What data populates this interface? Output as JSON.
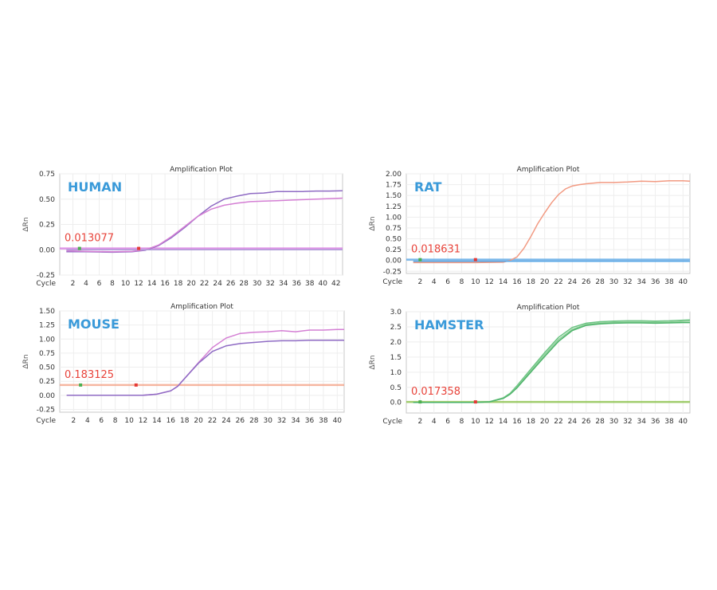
{
  "chart_data": [
    {
      "type": "line",
      "title": "Amplification Plot",
      "ylabel": "ΔRn",
      "xlabel": "Cycle",
      "label": "HUMAN",
      "threshold_label": "0.013077",
      "threshold": 0.013077,
      "xlim": [
        0,
        43
      ],
      "ylim": [
        -0.25,
        0.75
      ],
      "xticks": [
        2,
        4,
        6,
        8,
        10,
        12,
        14,
        16,
        18,
        20,
        22,
        24,
        26,
        28,
        30,
        32,
        34,
        36,
        38,
        40,
        42
      ],
      "yticks": [
        "0.75",
        "0.50",
        "0.25",
        "0.00",
        "-0.25"
      ],
      "grid": true,
      "colors": {
        "label": "#3a9ad9",
        "threshold_text": "#e8433a",
        "threshold_line": "#d77be0",
        "baseline_start": "#4caf50",
        "baseline_end": "#e53935"
      },
      "baseline_markers": [
        3,
        12
      ],
      "series": [
        {
          "color": "#8f6bc4",
          "points": [
            [
              1,
              -0.02
            ],
            [
              4,
              -0.02
            ],
            [
              8,
              -0.025
            ],
            [
              11,
              -0.02
            ],
            [
              13,
              -0.005
            ],
            [
              15,
              0.04
            ],
            [
              17,
              0.12
            ],
            [
              19,
              0.22
            ],
            [
              21,
              0.33
            ],
            [
              23,
              0.43
            ],
            [
              25,
              0.5
            ],
            [
              27,
              0.53
            ],
            [
              29,
              0.555
            ],
            [
              31,
              0.56
            ],
            [
              33,
              0.575
            ],
            [
              35,
              0.575
            ],
            [
              37,
              0.575
            ],
            [
              39,
              0.58
            ],
            [
              41,
              0.58
            ],
            [
              43,
              0.582
            ]
          ]
        },
        {
          "color": "#d47fd4",
          "points": [
            [
              1,
              -0.01
            ],
            [
              4,
              -0.015
            ],
            [
              8,
              -0.02
            ],
            [
              11,
              -0.015
            ],
            [
              13,
              0
            ],
            [
              15,
              0.045
            ],
            [
              17,
              0.13
            ],
            [
              19,
              0.23
            ],
            [
              21,
              0.33
            ],
            [
              23,
              0.4
            ],
            [
              25,
              0.44
            ],
            [
              27,
              0.46
            ],
            [
              29,
              0.475
            ],
            [
              31,
              0.48
            ],
            [
              33,
              0.485
            ],
            [
              35,
              0.49
            ],
            [
              37,
              0.495
            ],
            [
              39,
              0.5
            ],
            [
              41,
              0.505
            ],
            [
              43,
              0.51
            ]
          ]
        },
        {
          "color": "#b0a0d8",
          "points": [
            [
              1,
              0
            ],
            [
              43,
              0
            ]
          ]
        }
      ]
    },
    {
      "type": "line",
      "title": "Amplification Plot",
      "ylabel": "ΔRn",
      "xlabel": "Cycle",
      "label": "RAT",
      "threshold_label": "0.018631",
      "threshold": 0.018631,
      "xlim": [
        0,
        41
      ],
      "ylim": [
        -0.3,
        2.0
      ],
      "xticks": [
        2,
        4,
        6,
        8,
        10,
        12,
        14,
        16,
        18,
        20,
        22,
        24,
        26,
        28,
        30,
        32,
        34,
        36,
        38,
        40
      ],
      "yticks": [
        "2.00",
        "1.75",
        "1.50",
        "1.25",
        "1.00",
        "0.75",
        "0.50",
        "0.25",
        "0.00",
        "-0.25"
      ],
      "grid": true,
      "colors": {
        "label": "#3a9ad9",
        "threshold_text": "#e8433a",
        "threshold_line": "#5aa7e6",
        "baseline_start": "#4caf50",
        "baseline_end": "#e53935"
      },
      "baseline_markers": [
        2,
        10
      ],
      "series": [
        {
          "color": "#f29a82",
          "points": [
            [
              1,
              -0.05
            ],
            [
              6,
              -0.05
            ],
            [
              10,
              -0.05
            ],
            [
              14,
              -0.04
            ],
            [
              15,
              0
            ],
            [
              16,
              0.08
            ],
            [
              17,
              0.28
            ],
            [
              18,
              0.55
            ],
            [
              19,
              0.85
            ],
            [
              20,
              1.1
            ],
            [
              21,
              1.33
            ],
            [
              22,
              1.52
            ],
            [
              23,
              1.65
            ],
            [
              24,
              1.72
            ],
            [
              25,
              1.75
            ],
            [
              26,
              1.77
            ],
            [
              28,
              1.8
            ],
            [
              30,
              1.8
            ],
            [
              32,
              1.81
            ],
            [
              34,
              1.83
            ],
            [
              36,
              1.82
            ],
            [
              38,
              1.84
            ],
            [
              40,
              1.84
            ],
            [
              41,
              1.83
            ]
          ]
        },
        {
          "color": "#5aa7e6",
          "points": [
            [
              1,
              -0.02
            ],
            [
              41,
              -0.02
            ]
          ]
        }
      ]
    },
    {
      "type": "line",
      "title": "Amplification Plot",
      "ylabel": "ΔRn",
      "xlabel": "Cycle",
      "label": "MOUSE",
      "threshold_label": "0.183125",
      "threshold": 0.183125,
      "xlim": [
        0,
        41
      ],
      "ylim": [
        -0.3,
        1.5
      ],
      "xticks": [
        2,
        4,
        6,
        8,
        10,
        12,
        14,
        16,
        18,
        20,
        22,
        24,
        26,
        28,
        30,
        32,
        34,
        36,
        38,
        40
      ],
      "yticks": [
        "1.50",
        "1.25",
        "1.00",
        "0.75",
        "0.50",
        "0.25",
        "0.00",
        "-0.25"
      ],
      "grid": true,
      "colors": {
        "label": "#3a9ad9",
        "threshold_text": "#e8433a",
        "threshold_line": "#f4a58a",
        "baseline_start": "#4caf50",
        "baseline_end": "#e53935"
      },
      "baseline_markers": [
        3,
        11
      ],
      "series": [
        {
          "color": "#d47fd4",
          "points": [
            [
              1,
              0
            ],
            [
              8,
              0
            ],
            [
              12,
              0
            ],
            [
              14,
              0.02
            ],
            [
              16,
              0.08
            ],
            [
              17,
              0.16
            ],
            [
              18,
              0.3
            ],
            [
              20,
              0.58
            ],
            [
              22,
              0.85
            ],
            [
              24,
              1.02
            ],
            [
              26,
              1.1
            ],
            [
              28,
              1.12
            ],
            [
              30,
              1.13
            ],
            [
              32,
              1.15
            ],
            [
              34,
              1.13
            ],
            [
              36,
              1.16
            ],
            [
              38,
              1.16
            ],
            [
              40,
              1.17
            ],
            [
              41,
              1.17
            ]
          ]
        },
        {
          "color": "#8f6bc4",
          "points": [
            [
              1,
              0
            ],
            [
              8,
              0
            ],
            [
              12,
              0
            ],
            [
              14,
              0.02
            ],
            [
              16,
              0.08
            ],
            [
              17,
              0.16
            ],
            [
              18,
              0.3
            ],
            [
              20,
              0.57
            ],
            [
              22,
              0.78
            ],
            [
              24,
              0.88
            ],
            [
              26,
              0.92
            ],
            [
              28,
              0.94
            ],
            [
              30,
              0.96
            ],
            [
              32,
              0.97
            ],
            [
              34,
              0.97
            ],
            [
              36,
              0.98
            ],
            [
              38,
              0.98
            ],
            [
              40,
              0.98
            ],
            [
              41,
              0.98
            ]
          ]
        }
      ]
    },
    {
      "type": "line",
      "title": "Amplification Plot",
      "ylabel": "ΔRn",
      "xlabel": "Cycle",
      "label": "HAMSTER",
      "threshold_label": "0.017358",
      "threshold": 0.017358,
      "xlim": [
        0,
        41
      ],
      "ylim": [
        -0.35,
        3.0
      ],
      "xticks": [
        2,
        4,
        6,
        8,
        10,
        12,
        14,
        16,
        18,
        20,
        22,
        24,
        26,
        28,
        30,
        32,
        34,
        36,
        38,
        40
      ],
      "yticks": [
        "3.0",
        "2.5",
        "2.0",
        "1.5",
        "1.0",
        "0.5",
        "0.0"
      ],
      "grid": true,
      "colors": {
        "label": "#3a9ad9",
        "threshold_text": "#e8433a",
        "threshold_line": "#8bc34a",
        "baseline_start": "#4caf50",
        "baseline_end": "#e53935"
      },
      "baseline_markers": [
        2,
        10
      ],
      "series": [
        {
          "color": "#6cc483",
          "points": [
            [
              1,
              0
            ],
            [
              10,
              0
            ],
            [
              12,
              0.02
            ],
            [
              14,
              0.15
            ],
            [
              15,
              0.3
            ],
            [
              16,
              0.55
            ],
            [
              18,
              1.1
            ],
            [
              20,
              1.65
            ],
            [
              22,
              2.15
            ],
            [
              24,
              2.48
            ],
            [
              26,
              2.62
            ],
            [
              28,
              2.67
            ],
            [
              30,
              2.69
            ],
            [
              32,
              2.7
            ],
            [
              34,
              2.7
            ],
            [
              36,
              2.69
            ],
            [
              38,
              2.7
            ],
            [
              40,
              2.72
            ],
            [
              41,
              2.73
            ]
          ]
        },
        {
          "color": "#8fd09a",
          "points": [
            [
              1,
              0
            ],
            [
              10,
              0
            ],
            [
              12,
              0.02
            ],
            [
              14,
              0.14
            ],
            [
              15,
              0.28
            ],
            [
              16,
              0.5
            ],
            [
              18,
              1.05
            ],
            [
              20,
              1.58
            ],
            [
              22,
              2.08
            ],
            [
              24,
              2.42
            ],
            [
              26,
              2.58
            ],
            [
              28,
              2.63
            ],
            [
              30,
              2.65
            ],
            [
              32,
              2.66
            ],
            [
              34,
              2.66
            ],
            [
              36,
              2.65
            ],
            [
              38,
              2.66
            ],
            [
              40,
              2.68
            ],
            [
              41,
              2.69
            ]
          ]
        },
        {
          "color": "#4db36a",
          "points": [
            [
              1,
              0
            ],
            [
              10,
              0
            ],
            [
              12,
              0.02
            ],
            [
              14,
              0.13
            ],
            [
              15,
              0.27
            ],
            [
              16,
              0.48
            ],
            [
              18,
              1.0
            ],
            [
              20,
              1.52
            ],
            [
              22,
              2.02
            ],
            [
              24,
              2.38
            ],
            [
              26,
              2.55
            ],
            [
              28,
              2.6
            ],
            [
              30,
              2.62
            ],
            [
              32,
              2.63
            ],
            [
              34,
              2.63
            ],
            [
              36,
              2.62
            ],
            [
              38,
              2.63
            ],
            [
              40,
              2.64
            ],
            [
              41,
              2.64
            ]
          ]
        }
      ]
    }
  ]
}
